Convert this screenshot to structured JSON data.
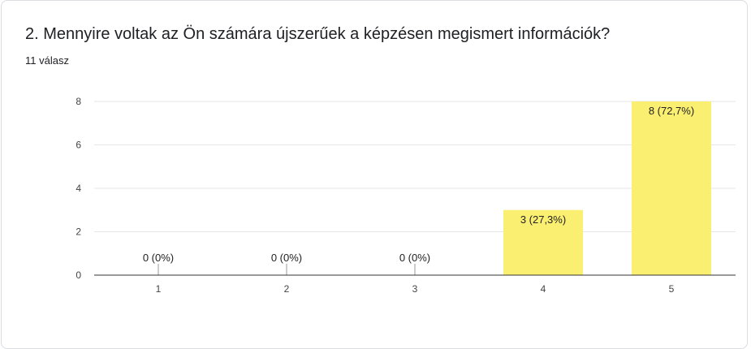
{
  "question": {
    "title": "2. Mennyire voltak az Ön számára újszerűek a képzésen megismert információk?"
  },
  "responses": {
    "count_text": "11 válasz"
  },
  "chart_data": {
    "type": "bar",
    "categories": [
      "1",
      "2",
      "3",
      "4",
      "5"
    ],
    "values": [
      0,
      0,
      0,
      3,
      8
    ],
    "data_labels": [
      "0 (0%)",
      "0 (0%)",
      "0 (0%)",
      "3 (27,3%)",
      "8 (72,7%)"
    ],
    "yticks": [
      0,
      2,
      4,
      6,
      8
    ],
    "ylim": [
      0,
      8
    ],
    "grid": true,
    "bar_color": "#fbef72"
  }
}
